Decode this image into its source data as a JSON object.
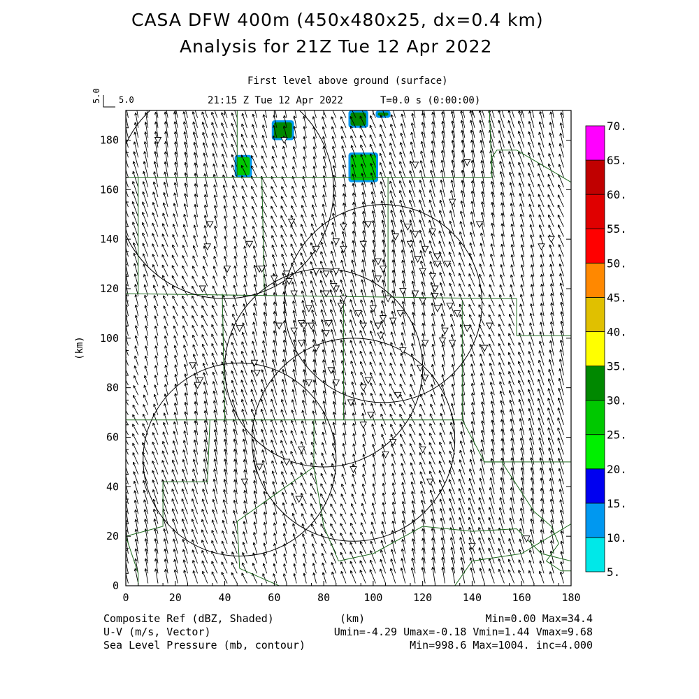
{
  "header": {
    "title_line1": "CASA DFW 400m (450x480x25, dx=0.4 km)",
    "title_line2": "Analysis for 21Z Tue 12 Apr 2022",
    "level": "First level above ground (surface)",
    "time": "21:15 Z Tue 12 Apr 2022",
    "t_elapsed": "T=0.0 s (0:00:00)",
    "vector_scale_label": "5.0",
    "vector_scale_value": "5.0"
  },
  "footer": {
    "field1": "Composite Ref (dBZ, Shaded)",
    "field2": "U-V (m/s, Vector)",
    "field3": "Sea Level Pressure (mb, contour)",
    "unit": "(km)",
    "stats1": "Min=0.00 Max=34.4",
    "stats2": "Umin=-4.29 Umax=-0.18 Vmin=1.44 Vmax=9.68",
    "stats3": "Min=998.6 Max=1004. inc=4.000"
  },
  "chart_data": {
    "type": "heatmap",
    "xlabel": "",
    "ylabel": "(km)",
    "xlim": [
      0,
      180
    ],
    "ylim": [
      0,
      192
    ],
    "x_ticks": [
      "0",
      "20",
      "40",
      "60",
      "80",
      "100",
      "120",
      "140",
      "160",
      "180"
    ],
    "y_ticks": [
      "0",
      "20",
      "40",
      "60",
      "80",
      "100",
      "120",
      "140",
      "160",
      "180"
    ],
    "colorbar": {
      "labels": [
        "5.",
        "10.",
        "15.",
        "20.",
        "25.",
        "30.",
        "35.",
        "40.",
        "45.",
        "50.",
        "55.",
        "60.",
        "65.",
        "70."
      ],
      "colors": [
        "#00e8e8",
        "#0098f0",
        "#0000f0",
        "#00f000",
        "#00c800",
        "#008800",
        "#ffff00",
        "#e0c000",
        "#ff8800",
        "#ff0000",
        "#e00000",
        "#c00000",
        "#ff00ff"
      ]
    },
    "reflectivity_cells": [
      {
        "x": [
          44,
          51
        ],
        "y": [
          165,
          174
        ],
        "dbz": 25
      },
      {
        "x": [
          59,
          68
        ],
        "y": [
          180,
          188
        ],
        "dbz": 30
      },
      {
        "x": [
          90,
          98
        ],
        "y": [
          185,
          192
        ],
        "dbz": 34
      },
      {
        "x": [
          101,
          107
        ],
        "y": [
          189,
          192
        ],
        "dbz": 30
      },
      {
        "x": [
          90,
          102
        ],
        "y": [
          163,
          175
        ],
        "dbz": 27
      }
    ],
    "radar_rings": [
      {
        "cx": 104,
        "cy": 114,
        "r": 40
      },
      {
        "cx": 80,
        "cy": 88,
        "r": 40
      },
      {
        "cx": 92,
        "cy": 59,
        "r": 41
      },
      {
        "cx": 46,
        "cy": 51,
        "r": 39
      },
      {
        "cx": 40,
        "cy": 160,
        "r": 44
      }
    ],
    "wind_range": {
      "umin": -4.29,
      "umax": -0.18,
      "vmin": 1.44,
      "vmax": 9.68
    },
    "county_lines": [
      [
        [
          0,
          165
        ],
        [
          148,
          165
        ],
        [
          148,
          173
        ],
        [
          150,
          176
        ],
        [
          158,
          176
        ],
        [
          180,
          163
        ]
      ],
      [
        [
          0,
          118
        ],
        [
          152,
          116
        ],
        [
          158,
          116
        ],
        [
          158,
          101
        ],
        [
          180,
          101
        ]
      ],
      [
        [
          0,
          67
        ],
        [
          136,
          67
        ],
        [
          136,
          115
        ]
      ],
      [
        [
          0,
          118
        ],
        [
          0,
          67
        ]
      ],
      [
        [
          5,
          165
        ],
        [
          5,
          118
        ]
      ],
      [
        [
          55,
          165
        ],
        [
          56,
          118
        ]
      ],
      [
        [
          39,
          118
        ],
        [
          40,
          67
        ]
      ],
      [
        [
          88,
          118
        ],
        [
          88,
          67
        ]
      ],
      [
        [
          106,
          165
        ],
        [
          106,
          116
        ]
      ],
      [
        [
          147,
          192
        ],
        [
          148,
          165
        ]
      ],
      [
        [
          34,
          67
        ],
        [
          33,
          42
        ],
        [
          15,
          42
        ],
        [
          15,
          24
        ],
        [
          0,
          20
        ]
      ],
      [
        [
          76,
          67
        ],
        [
          76,
          48
        ],
        [
          45,
          26
        ],
        [
          46,
          7
        ]
      ],
      [
        [
          76,
          48
        ],
        [
          80,
          24
        ],
        [
          86,
          10
        ]
      ],
      [
        [
          136,
          67
        ],
        [
          145,
          50
        ],
        [
          180,
          50
        ],
        [
          180,
          101
        ]
      ],
      [
        [
          145,
          50
        ],
        [
          152,
          50
        ],
        [
          165,
          30
        ],
        [
          172,
          24
        ],
        [
          175,
          17
        ],
        [
          170,
          10
        ],
        [
          176,
          6
        ],
        [
          180,
          6
        ]
      ],
      [
        [
          86,
          10
        ],
        [
          100,
          13
        ],
        [
          120,
          24
        ],
        [
          140,
          22
        ],
        [
          158,
          23
        ],
        [
          168,
          13
        ],
        [
          180,
          10
        ]
      ],
      [
        [
          46,
          7
        ],
        [
          62,
          0
        ]
      ],
      [
        [
          0,
          20
        ],
        [
          5,
          5
        ],
        [
          5,
          0
        ]
      ],
      [
        [
          45,
          192
        ],
        [
          45,
          165
        ]
      ],
      [
        [
          133,
          0
        ],
        [
          140,
          10
        ],
        [
          160,
          13
        ],
        [
          180,
          25
        ]
      ]
    ],
    "stations": [
      [
        13,
        180
      ],
      [
        64,
        180
      ],
      [
        117,
        170
      ],
      [
        138,
        171
      ],
      [
        132,
        155
      ],
      [
        143,
        146
      ],
      [
        67,
        147
      ],
      [
        34,
        146
      ],
      [
        33,
        137
      ],
      [
        54,
        128
      ],
      [
        65,
        126
      ],
      [
        77,
        136
      ],
      [
        85,
        139
      ],
      [
        88,
        145
      ],
      [
        88,
        136
      ],
      [
        98,
        146
      ],
      [
        96,
        138
      ],
      [
        102,
        131
      ],
      [
        102,
        124
      ],
      [
        104,
        128
      ],
      [
        109,
        141
      ],
      [
        114,
        145
      ],
      [
        115,
        138
      ],
      [
        117,
        142
      ],
      [
        124,
        143
      ],
      [
        121,
        136
      ],
      [
        126,
        133
      ],
      [
        126,
        130
      ],
      [
        118,
        132
      ],
      [
        120,
        127
      ],
      [
        124,
        125
      ],
      [
        130,
        130
      ],
      [
        125,
        120
      ],
      [
        120,
        115
      ],
      [
        126,
        112
      ],
      [
        131,
        113
      ],
      [
        134,
        110
      ],
      [
        129,
        103
      ],
      [
        128,
        99
      ],
      [
        132,
        98
      ],
      [
        138,
        104
      ],
      [
        147,
        105
      ],
      [
        145,
        96
      ],
      [
        121,
        98
      ],
      [
        112,
        95
      ],
      [
        103,
        101
      ],
      [
        108,
        107
      ],
      [
        102,
        105
      ],
      [
        96,
        105
      ],
      [
        94,
        110
      ],
      [
        87,
        113
      ],
      [
        88,
        116
      ],
      [
        85,
        120
      ],
      [
        81,
        118
      ],
      [
        84,
        121
      ],
      [
        81,
        126
      ],
      [
        85,
        127
      ],
      [
        77,
        127
      ],
      [
        74,
        112
      ],
      [
        71,
        106
      ],
      [
        68,
        103
      ],
      [
        62,
        105
      ],
      [
        72,
        105
      ],
      [
        81,
        102
      ],
      [
        82,
        106
      ],
      [
        71,
        98
      ],
      [
        77,
        96
      ],
      [
        83,
        87
      ],
      [
        85,
        82
      ],
      [
        74,
        82
      ],
      [
        91,
        74
      ],
      [
        96,
        80
      ],
      [
        98,
        83
      ],
      [
        110,
        77
      ],
      [
        121,
        84
      ],
      [
        119,
        88
      ],
      [
        99,
        69
      ],
      [
        96,
        65
      ],
      [
        108,
        58
      ],
      [
        105,
        53
      ],
      [
        120,
        55
      ],
      [
        123,
        42
      ],
      [
        92,
        47
      ],
      [
        71,
        55
      ],
      [
        65,
        50
      ],
      [
        54,
        48
      ],
      [
        48,
        42
      ],
      [
        70,
        35
      ],
      [
        52,
        90
      ],
      [
        53,
        86
      ],
      [
        30,
        83
      ],
      [
        27,
        89
      ],
      [
        29,
        81
      ],
      [
        31,
        120
      ],
      [
        46,
        104
      ],
      [
        41,
        128
      ],
      [
        50,
        138
      ],
      [
        55,
        128
      ],
      [
        60,
        124
      ],
      [
        66,
        123
      ],
      [
        68,
        118
      ],
      [
        75,
        105
      ],
      [
        104,
        108
      ],
      [
        100,
        112
      ],
      [
        106,
        116
      ],
      [
        111,
        110
      ],
      [
        112,
        119
      ],
      [
        117,
        118
      ],
      [
        125,
        117
      ],
      [
        140,
        16
      ],
      [
        162,
        19
      ],
      [
        168,
        137
      ],
      [
        172,
        140
      ]
    ]
  }
}
